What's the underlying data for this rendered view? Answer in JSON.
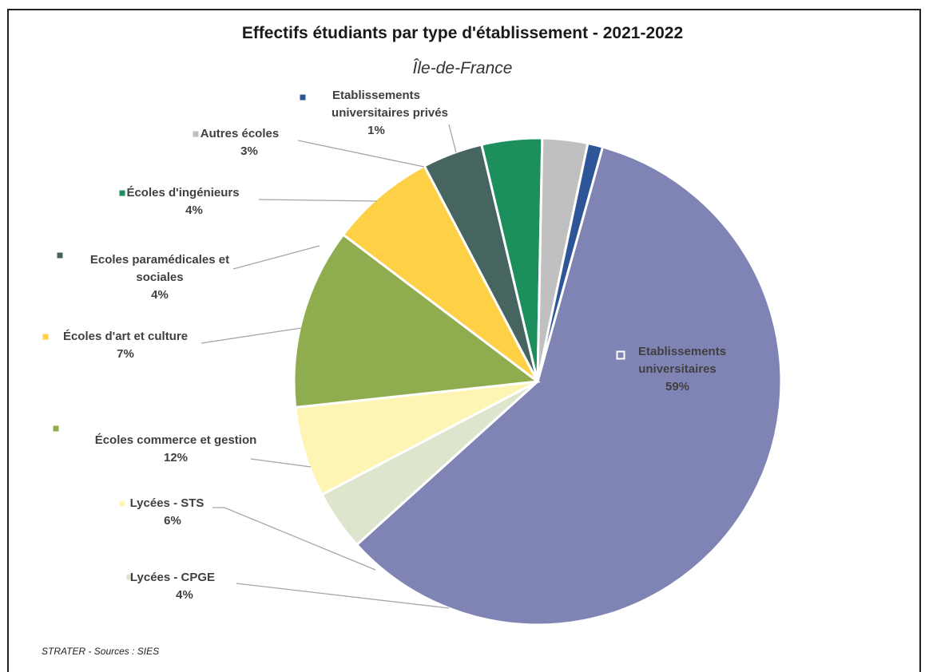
{
  "chart_data": {
    "type": "pie",
    "title": "Effectifs étudiants par type d'établissement - 2021-2022",
    "subtitle": "Île-de-France",
    "slices": [
      {
        "label": "Etablissements universitaires",
        "value": 59,
        "pct_label": "59%",
        "color": "#8084b5"
      },
      {
        "label": "Lycées - CPGE",
        "value": 4,
        "pct_label": "4%",
        "color": "#dde6cc"
      },
      {
        "label": "Lycées - STS",
        "value": 6,
        "pct_label": "6%",
        "color": "#fef4b3"
      },
      {
        "label": "Écoles commerce et gestion",
        "value": 12,
        "pct_label": "12%",
        "color": "#8fad4f"
      },
      {
        "label": "Écoles d'art et culture",
        "value": 7,
        "pct_label": "7%",
        "color": "#fdd046"
      },
      {
        "label": "Ecoles paramédicales et sociales",
        "value": 4,
        "pct_label": "4%",
        "color": "#476560"
      },
      {
        "label": "Écoles d'ingénieurs",
        "value": 4,
        "pct_label": "4%",
        "color": "#1c8f5d"
      },
      {
        "label": "Autres écoles",
        "value": 3,
        "pct_label": "3%",
        "color": "#c0c0c0"
      },
      {
        "label": "Etablissements universitaires privés",
        "value": 1,
        "pct_label": "1%",
        "color": "#2e5598"
      }
    ]
  },
  "footer": {
    "source": "STRATER - Sources : SIES"
  }
}
